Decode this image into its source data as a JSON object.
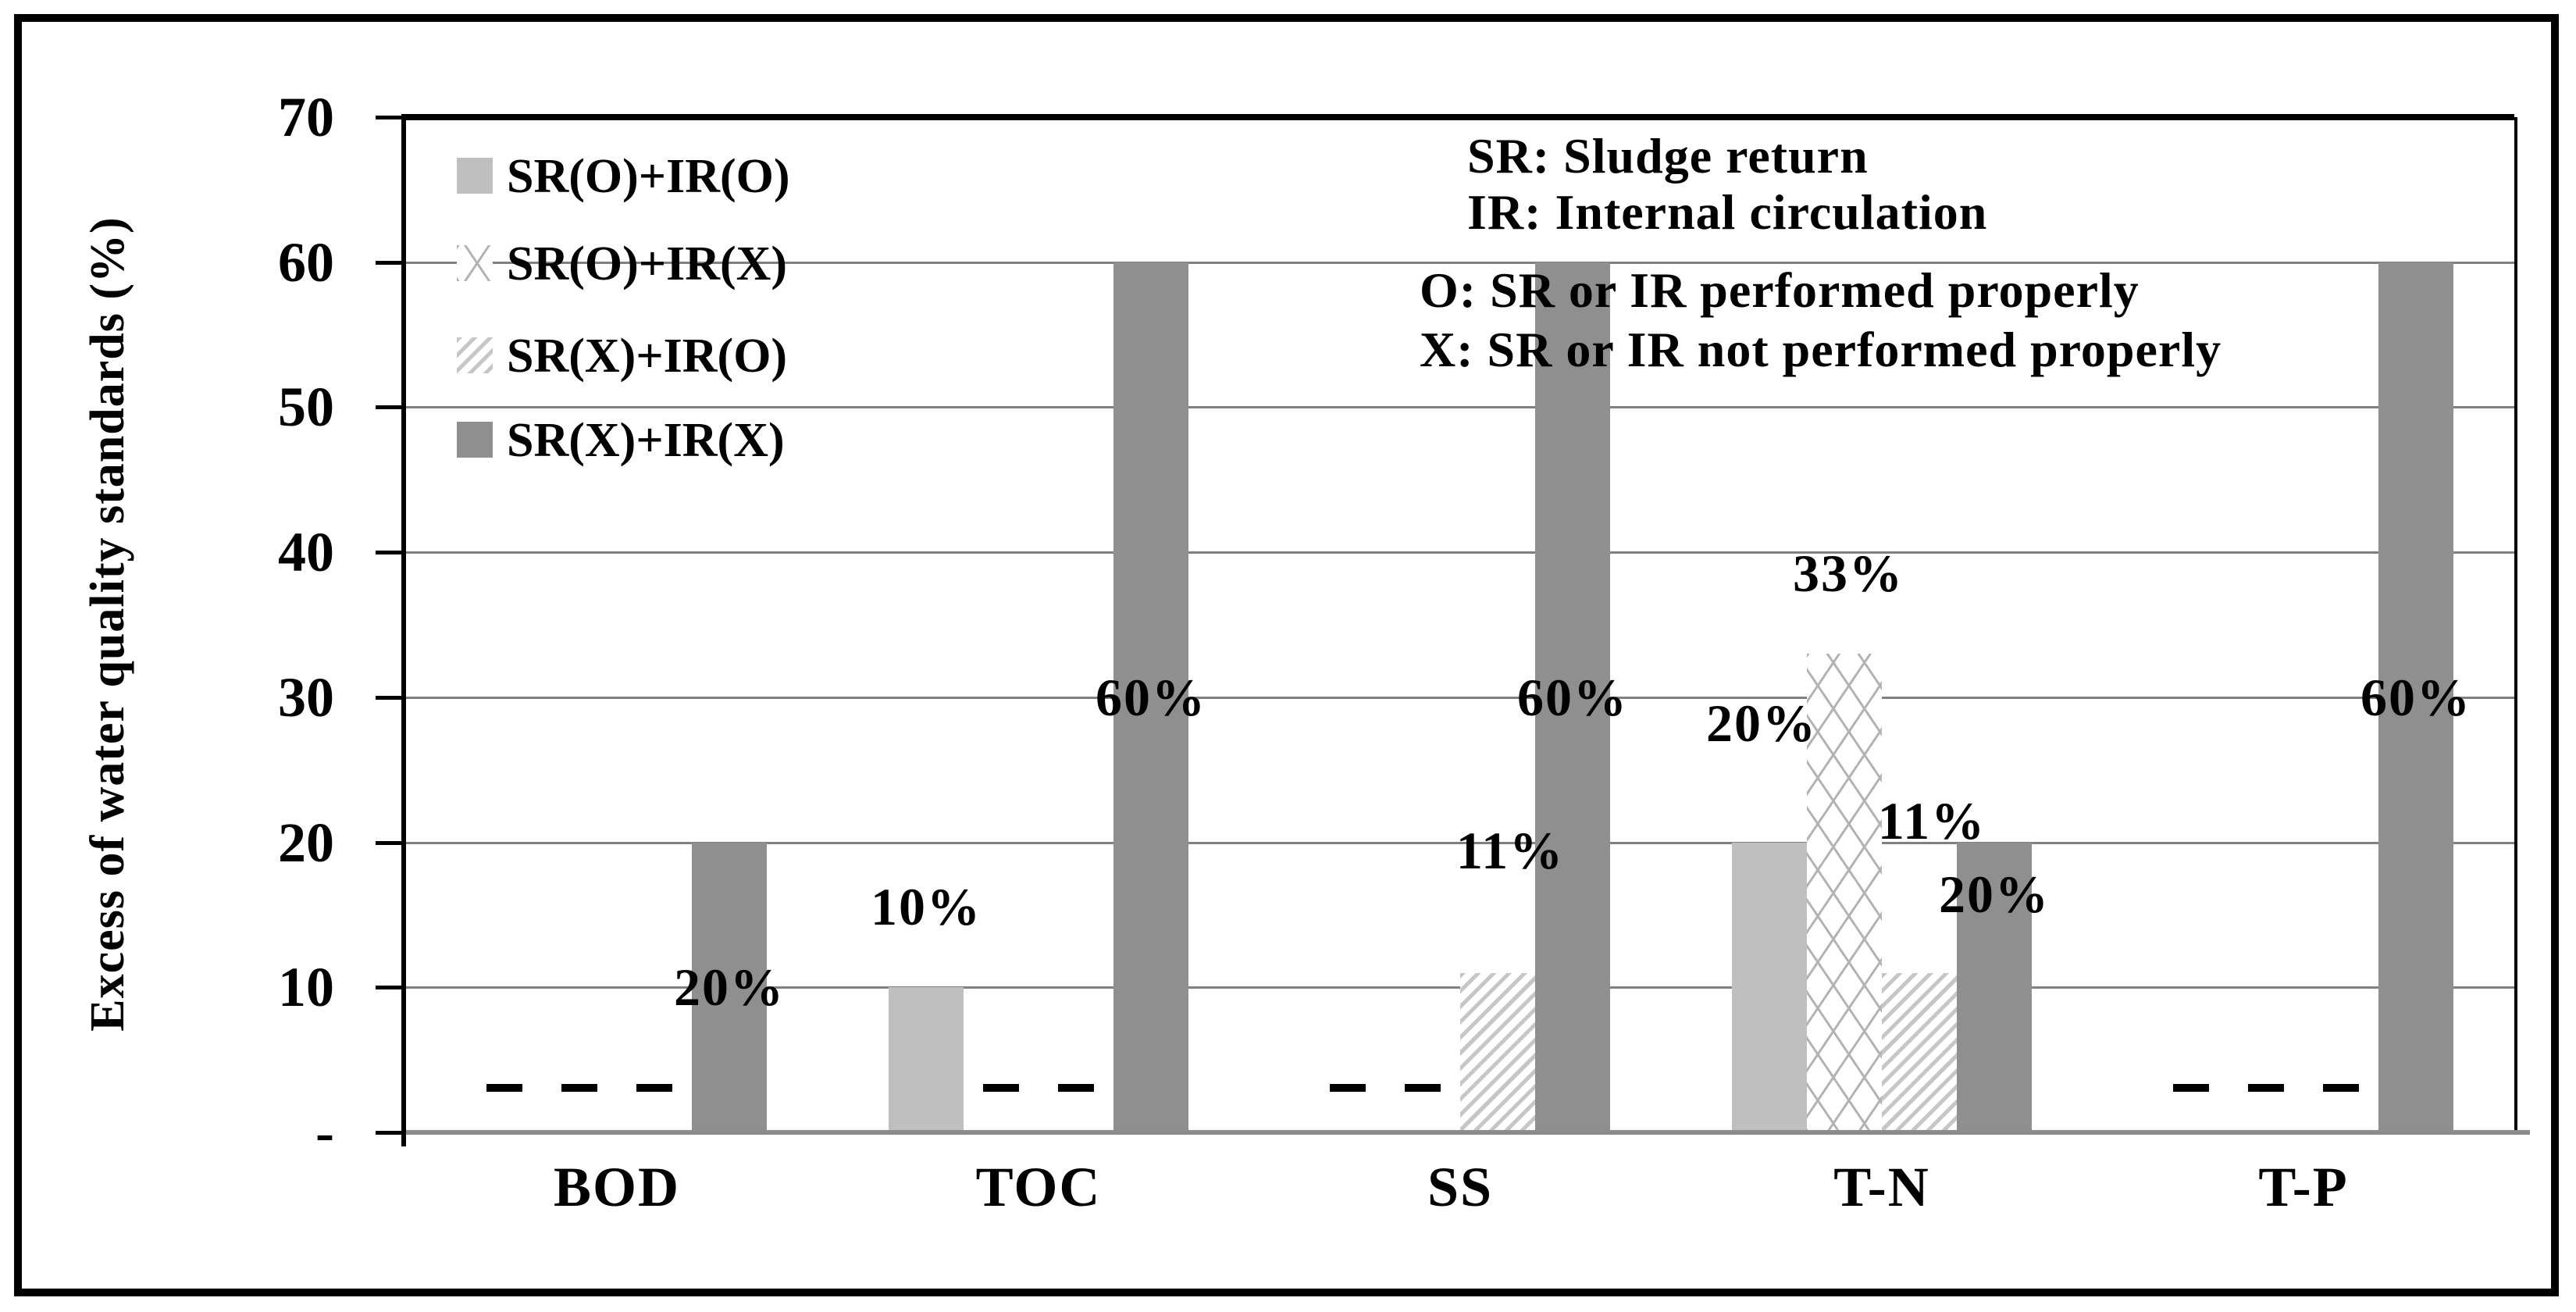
{
  "chart_data": {
    "type": "bar",
    "title": "",
    "xlabel": "",
    "ylabel": "Excess of water quality standards (%)",
    "ylim": [
      0,
      70
    ],
    "ytick_interval": 10,
    "ytick_labels": [
      "-",
      "10",
      "20",
      "30",
      "40",
      "50",
      "60",
      "70"
    ],
    "grid": "horizontal-gray-lines",
    "legend_position": "inside-upper-left",
    "zero_value_marker": "dash",
    "categories": [
      "BOD",
      "TOC",
      "SS",
      "T-N",
      "T-P"
    ],
    "series": [
      {
        "name": "SR(O)+IR(O)",
        "style": "solid-light",
        "values": [
          0,
          10,
          0,
          20,
          0
        ],
        "labels": [
          "-",
          "10%",
          "-",
          "20%",
          "-"
        ]
      },
      {
        "name": "SR(O)+IR(X)",
        "style": "crosshatch",
        "values": [
          0,
          0,
          0,
          33,
          0
        ],
        "labels": [
          "-",
          "-",
          "-",
          "33%",
          "-"
        ]
      },
      {
        "name": "SR(X)+IR(O)",
        "style": "diagonal",
        "values": [
          0,
          0,
          11,
          11,
          0
        ],
        "labels": [
          "-",
          "-",
          "11%",
          "11%",
          "-"
        ]
      },
      {
        "name": "SR(X)+IR(X)",
        "style": "solid-dark",
        "values": [
          20,
          60,
          60,
          20,
          60
        ],
        "labels": [
          "20%",
          "60%",
          "60%",
          "20%",
          "60%"
        ]
      }
    ],
    "annotations": {
      "top_lines": [
        "SR: Sludge return",
        "IR: Internal circulation"
      ],
      "bottom_lines": [
        "O: SR or IR performed properly",
        "X: SR or IR not performed properly"
      ]
    },
    "colors": {
      "bar_light_gray": "#bfbfbf",
      "bar_dark_gray": "#8f8f8f",
      "hatch_line_gray": "#c6c6c6",
      "crosshatch_line_gray": "#b3b3b3",
      "gridline": "#808080",
      "baseline": "#8c8c8c",
      "axis": "#000000",
      "text": "#000000",
      "background": "#ffffff"
    }
  }
}
